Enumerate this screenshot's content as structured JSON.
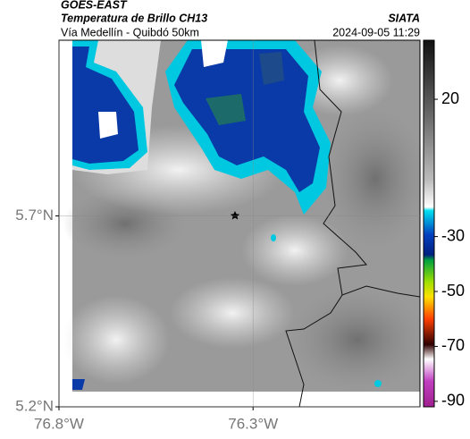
{
  "header": {
    "title": "GOES-EAST",
    "subtitle": "Temperatura de Brillo CH13",
    "route": "Vía Medellín - Quibdó 50km",
    "source": "SIATA",
    "timestamp": "2024-09-05 11:29"
  },
  "map": {
    "xlim": [
      -76.8,
      -75.87
    ],
    "ylim": [
      5.2,
      6.16
    ],
    "xticks": [
      {
        "value": -76.8,
        "label": "76.8°W"
      },
      {
        "value": -76.3,
        "label": "76.3°W"
      }
    ],
    "yticks": [
      {
        "value": 5.7,
        "label": "5.7°N"
      },
      {
        "value": 5.2,
        "label": "5.2°N"
      }
    ],
    "grid": true
  },
  "colorbar": {
    "lim": [
      -92,
      41.5
    ],
    "ticks": [
      20,
      -30,
      -50,
      -70,
      -90
    ]
  }
}
